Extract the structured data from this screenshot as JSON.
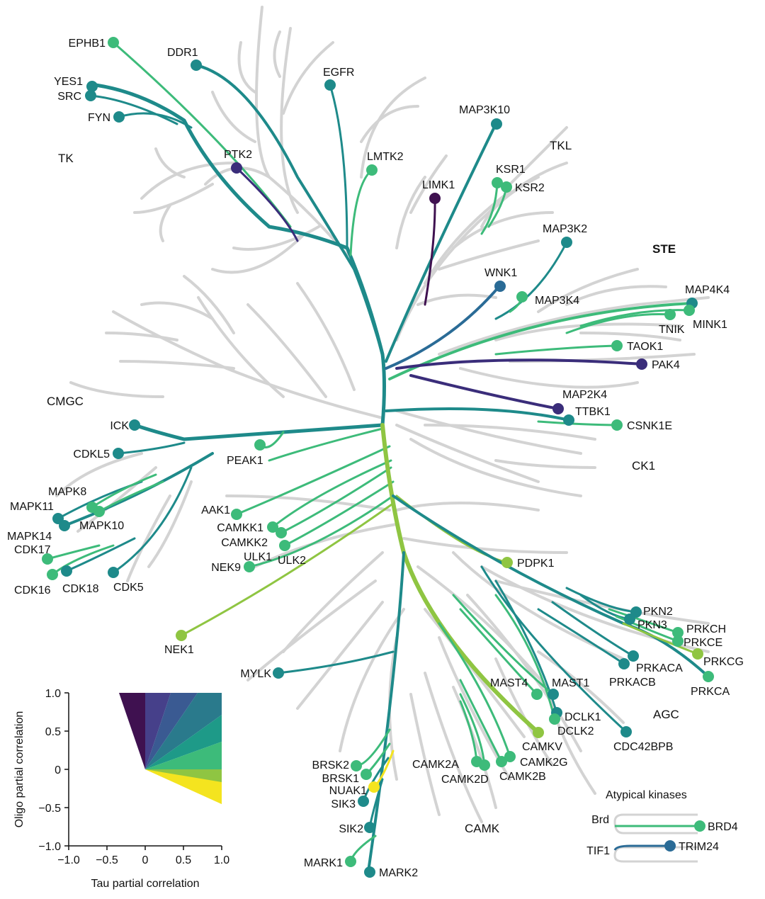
{
  "colors": {
    "gray": "#d3d3d3",
    "c1": "#40004b",
    "c2": "#3b2a75",
    "c3": "#46408a",
    "c4": "#2c6b93",
    "c5": "#1b8a8c",
    "c6": "#2eb67d",
    "c7": "#7fc743",
    "c8": "#f2e51d",
    "teal": "#1e8a8a",
    "green": "#3dbb7a",
    "lime": "#8fc542",
    "yellow": "#f4e41f",
    "purple": "#3a2d7a",
    "darkpurple": "#3f1150",
    "blue": "#2a6b96"
  },
  "groups": {
    "tk": "TK",
    "tkl": "TKL",
    "ste": "STE",
    "cmgc": "CMGC",
    "ck1": "CK1",
    "agc": "AGC",
    "camk": "CAMK"
  },
  "kinases": {
    "EPHB1": "EPHB1",
    "DDR1": "DDR1",
    "EGFR": "EGFR",
    "YES1": "YES1",
    "SRC": "SRC",
    "FYN": "FYN",
    "PTK2": "PTK2",
    "LMTK2": "LMTK2",
    "LIMK1": "LIMK1",
    "MAP3K10": "MAP3K10",
    "KSR1": "KSR1",
    "KSR2": "KSR2",
    "MAP3K2": "MAP3K2",
    "WNK1": "WNK1",
    "MAP3K4": "MAP3K4",
    "MAP4K4": "MAP4K4",
    "TNIK": "TNIK",
    "MINK1": "MINK1",
    "TAOK1": "TAOK1",
    "PAK4": "PAK4",
    "MAP2K4": "MAP2K4",
    "TTBK1": "TTBK1",
    "CSNK1E": "CSNK1E",
    "ICK": "ICK",
    "CDKL5": "CDKL5",
    "PEAK1": "PEAK1",
    "MAPK8": "MAPK8",
    "MAPK11": "MAPK11",
    "MAPK10": "MAPK10",
    "MAPK14": "MAPK14",
    "CDK17": "CDK17",
    "CDK16": "CDK16",
    "CDK18": "CDK18",
    "CDK5": "CDK5",
    "AAK1": "AAK1",
    "CAMKK1": "CAMKK1",
    "CAMKK2": "CAMKK2",
    "ULK1": "ULK1",
    "ULK2": "ULK2",
    "NEK9": "NEK9",
    "NEK1": "NEK1",
    "PDPK1": "PDPK1",
    "PKN2": "PKN2",
    "PKN3": "PKN3",
    "PRKCH": "PRKCH",
    "PRKCE": "PRKCE",
    "PRKCG": "PRKCG",
    "PRKACA": "PRKACA",
    "PRKACB": "PRKACB",
    "PRKCA": "PRKCA",
    "MYLK": "MYLK",
    "MAST4": "MAST4",
    "MAST1": "MAST1",
    "DCLK1": "DCLK1",
    "DCLK2": "DCLK2",
    "CAMKV": "CAMKV",
    "CDC42BPB": "CDC42BPB",
    "CAMK2A": "CAMK2A",
    "CAMK2G": "CAMK2G",
    "CAMK2D": "CAMK2D",
    "CAMK2B": "CAMK2B",
    "BRSK2": "BRSK2",
    "BRSK1": "BRSK1",
    "NUAK1": "NUAK1",
    "SIK3": "SIK3",
    "SIK2": "SIK2",
    "MARK1": "MARK1",
    "MARK2": "MARK2"
  },
  "atypical": {
    "title": "Atypical kinases",
    "brd": "Brd",
    "tif1": "TIF1",
    "brd4": "BRD4",
    "trim24": "TRIM24"
  },
  "legend": {
    "ylabel": "Oligo partial correlation",
    "xlabel": "Tau partial correlation",
    "xticks": [
      "−1.0",
      "−0.5",
      "0",
      "0.5",
      "1.0"
    ],
    "yticks": [
      "1.0",
      "0.5",
      "0",
      "−0.5",
      "−1.0"
    ]
  }
}
